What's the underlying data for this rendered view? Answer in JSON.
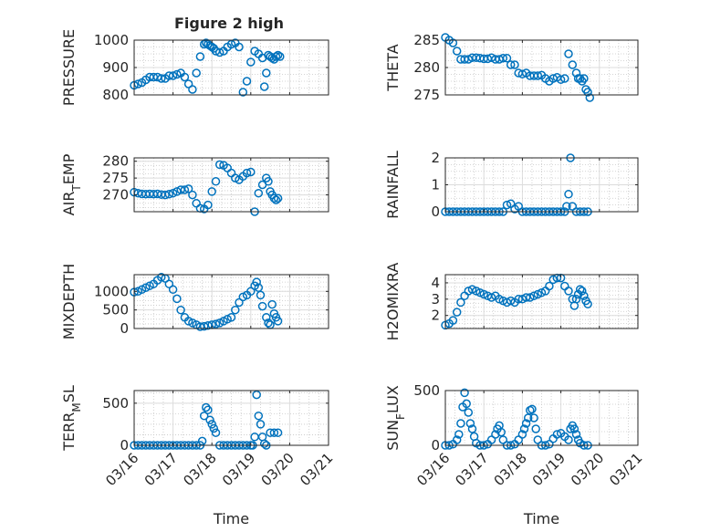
{
  "figure": {
    "title": "Figure 2 high",
    "xlabel": "Time",
    "colors": {
      "marker": "#0072BD",
      "axis": "#262626",
      "grid": "#dcdcdc",
      "background": "#ffffff"
    }
  },
  "chart_data": [
    {
      "type": "scatter",
      "ylabel": "PRESSURE",
      "ylim": [
        800,
        1000
      ],
      "yticks": [
        800,
        900,
        1000
      ],
      "ytick_labels": [
        "800",
        "900",
        "1000"
      ],
      "xlim": [
        0,
        5
      ],
      "xtick_labels": [],
      "grid": true,
      "x": [
        0,
        0.1,
        0.2,
        0.3,
        0.4,
        0.5,
        0.6,
        0.7,
        0.8,
        0.9,
        1.0,
        1.1,
        1.2,
        1.3,
        1.4,
        1.5,
        1.6,
        1.7,
        1.8,
        1.85,
        1.9,
        1.95,
        2.0,
        2.05,
        2.1,
        2.2,
        2.3,
        2.4,
        2.5,
        2.6,
        2.7,
        2.8,
        2.9,
        3.0,
        3.1,
        3.2,
        3.3,
        3.35,
        3.4,
        3.45,
        3.5,
        3.55,
        3.6,
        3.65,
        3.7,
        3.75
      ],
      "y": [
        835,
        840,
        845,
        855,
        865,
        865,
        865,
        860,
        860,
        870,
        870,
        875,
        880,
        865,
        840,
        820,
        880,
        940,
        985,
        990,
        985,
        980,
        975,
        970,
        960,
        955,
        960,
        975,
        985,
        990,
        975,
        810,
        850,
        920,
        960,
        950,
        935,
        830,
        880,
        945,
        940,
        935,
        930,
        940,
        945,
        940
      ]
    },
    {
      "type": "scatter",
      "ylabel": "THETA",
      "ylim": [
        275,
        285
      ],
      "yticks": [
        275,
        280,
        285
      ],
      "ytick_labels": [
        "275",
        "280",
        "285"
      ],
      "xlim": [
        0,
        5
      ],
      "xtick_labels": [],
      "grid": true,
      "x": [
        0,
        0.1,
        0.2,
        0.3,
        0.4,
        0.5,
        0.6,
        0.7,
        0.8,
        0.9,
        1.0,
        1.1,
        1.2,
        1.3,
        1.4,
        1.5,
        1.6,
        1.7,
        1.8,
        1.9,
        2.0,
        2.1,
        2.2,
        2.3,
        2.4,
        2.5,
        2.6,
        2.7,
        2.8,
        2.9,
        3.0,
        3.1,
        3.2,
        3.3,
        3.4,
        3.45,
        3.5,
        3.55,
        3.6,
        3.65,
        3.7,
        3.75
      ],
      "y": [
        285.5,
        285,
        284.5,
        283,
        281.5,
        281.5,
        281.5,
        281.8,
        281.8,
        281.7,
        281.6,
        281.6,
        281.8,
        281.5,
        281.5,
        281.7,
        281.7,
        280.5,
        280.5,
        279,
        278.8,
        279,
        278.5,
        278.5,
        278.5,
        278.6,
        278,
        277.5,
        278,
        278.2,
        277.8,
        278,
        282.5,
        280.5,
        279,
        278,
        278,
        277.5,
        278,
        276,
        275.5,
        274.5
      ]
    },
    {
      "type": "scatter",
      "ylabel": "AIR_TEMP",
      "ylim": [
        265,
        281
      ],
      "yticks": [
        270,
        275,
        280
      ],
      "ytick_labels": [
        "270",
        "275",
        "280"
      ],
      "xlim": [
        0,
        5
      ],
      "xtick_labels": [],
      "grid": true,
      "x": [
        0,
        0.1,
        0.2,
        0.3,
        0.4,
        0.5,
        0.6,
        0.7,
        0.8,
        0.9,
        1.0,
        1.1,
        1.2,
        1.3,
        1.4,
        1.5,
        1.6,
        1.7,
        1.8,
        1.9,
        2.0,
        2.1,
        2.2,
        2.3,
        2.4,
        2.5,
        2.6,
        2.7,
        2.8,
        2.9,
        3.0,
        3.1,
        3.2,
        3.3,
        3.4,
        3.45,
        3.5,
        3.55,
        3.6,
        3.65,
        3.7
      ],
      "y": [
        270.8,
        270.5,
        270.3,
        270.2,
        270.3,
        270.2,
        270.3,
        270.1,
        270,
        270.2,
        270.5,
        271,
        271.5,
        271.5,
        271.8,
        270,
        267.5,
        266,
        265.8,
        267,
        271,
        274,
        279,
        278.8,
        278,
        276.5,
        275,
        274.5,
        275.5,
        276.5,
        276.8,
        265,
        270.5,
        273,
        275,
        274,
        271,
        270,
        269,
        268.5,
        269
      ]
    },
    {
      "type": "scatter",
      "ylabel": "RAINFALL",
      "ylim": [
        0,
        2
      ],
      "yticks": [
        0,
        1,
        2
      ],
      "ytick_labels": [
        "0",
        "1",
        "2"
      ],
      "xlim": [
        0,
        5
      ],
      "xtick_labels": [],
      "grid": true,
      "x": [
        0,
        0.1,
        0.2,
        0.3,
        0.4,
        0.5,
        0.6,
        0.7,
        0.8,
        0.9,
        1.0,
        1.1,
        1.2,
        1.3,
        1.4,
        1.5,
        1.6,
        1.7,
        1.8,
        1.9,
        2.0,
        2.1,
        2.2,
        2.3,
        2.4,
        2.5,
        2.6,
        2.7,
        2.8,
        2.9,
        3.0,
        3.1,
        3.15,
        3.2,
        3.25,
        3.3,
        3.4,
        3.5,
        3.6,
        3.7
      ],
      "y": [
        0,
        0,
        0,
        0,
        0,
        0,
        0,
        0,
        0,
        0,
        0,
        0,
        0,
        0,
        0,
        0,
        0.25,
        0.3,
        0.1,
        0.2,
        0,
        0,
        0,
        0,
        0,
        0,
        0,
        0,
        0,
        0,
        0,
        0,
        0.2,
        0.65,
        2,
        0.2,
        0,
        0,
        0,
        0
      ]
    },
    {
      "type": "scatter",
      "ylabel": "MIXDEPTH",
      "ylim": [
        0,
        1450
      ],
      "yticks": [
        0,
        500,
        1000
      ],
      "ytick_labels": [
        "0",
        "500",
        "1000"
      ],
      "xlim": [
        0,
        5
      ],
      "xtick_labels": [],
      "grid": true,
      "x": [
        0,
        0.1,
        0.2,
        0.3,
        0.4,
        0.5,
        0.6,
        0.7,
        0.8,
        0.9,
        1.0,
        1.1,
        1.2,
        1.3,
        1.4,
        1.5,
        1.6,
        1.7,
        1.8,
        1.9,
        2.0,
        2.1,
        2.2,
        2.3,
        2.4,
        2.5,
        2.6,
        2.7,
        2.8,
        2.9,
        3.0,
        3.1,
        3.15,
        3.2,
        3.25,
        3.3,
        3.4,
        3.45,
        3.5,
        3.55,
        3.6,
        3.65,
        3.7
      ],
      "y": [
        980,
        1000,
        1050,
        1100,
        1150,
        1200,
        1300,
        1380,
        1350,
        1200,
        1050,
        800,
        500,
        300,
        200,
        150,
        100,
        50,
        60,
        80,
        100,
        120,
        150,
        200,
        250,
        300,
        500,
        700,
        850,
        900,
        1000,
        1150,
        1250,
        1100,
        900,
        600,
        300,
        150,
        100,
        650,
        400,
        300,
        200
      ]
    },
    {
      "type": "scatter",
      "ylabel": "H2OMIXRA",
      "ylim": [
        1.2,
        4.5
      ],
      "yticks": [
        2,
        3,
        4
      ],
      "ytick_labels": [
        "2",
        "3",
        "4"
      ],
      "xlim": [
        0,
        5
      ],
      "xtick_labels": [],
      "grid": true,
      "x": [
        0,
        0.1,
        0.2,
        0.3,
        0.4,
        0.5,
        0.6,
        0.7,
        0.8,
        0.9,
        1.0,
        1.1,
        1.2,
        1.3,
        1.4,
        1.5,
        1.6,
        1.7,
        1.8,
        1.9,
        2.0,
        2.1,
        2.2,
        2.3,
        2.4,
        2.5,
        2.6,
        2.7,
        2.8,
        2.9,
        3.0,
        3.1,
        3.2,
        3.3,
        3.35,
        3.4,
        3.45,
        3.5,
        3.55,
        3.6,
        3.65,
        3.7
      ],
      "y": [
        1.4,
        1.5,
        1.7,
        2.2,
        2.8,
        3.2,
        3.5,
        3.6,
        3.5,
        3.4,
        3.3,
        3.2,
        3.1,
        3.2,
        3.0,
        2.9,
        2.8,
        2.9,
        2.8,
        3.0,
        3.0,
        3.1,
        3.1,
        3.2,
        3.3,
        3.4,
        3.5,
        3.8,
        4.2,
        4.3,
        4.3,
        3.8,
        3.5,
        3.0,
        2.6,
        3.0,
        3.3,
        3.6,
        3.5,
        3.2,
        2.9,
        2.7
      ]
    },
    {
      "type": "scatter",
      "ylabel": "TERR_MSL",
      "ylim": [
        0,
        650
      ],
      "yticks": [
        0,
        500
      ],
      "ytick_labels": [
        "0",
        "500"
      ],
      "xlim": [
        0,
        5
      ],
      "xtick_labels": [
        "03/16",
        "03/17",
        "03/18",
        "03/19",
        "03/20",
        "03/21"
      ],
      "xlabel": "Time",
      "grid": true,
      "x": [
        0,
        0.1,
        0.2,
        0.3,
        0.4,
        0.5,
        0.6,
        0.7,
        0.8,
        0.9,
        1.0,
        1.1,
        1.2,
        1.3,
        1.4,
        1.5,
        1.6,
        1.7,
        1.75,
        1.8,
        1.85,
        1.9,
        1.95,
        2.0,
        2.05,
        2.1,
        2.2,
        2.3,
        2.4,
        2.5,
        2.6,
        2.7,
        2.8,
        2.9,
        3.0,
        3.05,
        3.1,
        3.15,
        3.2,
        3.25,
        3.3,
        3.35,
        3.4,
        3.5,
        3.6,
        3.7
      ],
      "y": [
        0,
        0,
        0,
        0,
        0,
        0,
        0,
        0,
        0,
        0,
        0,
        0,
        0,
        0,
        0,
        0,
        0,
        0,
        50,
        350,
        450,
        420,
        300,
        250,
        200,
        150,
        0,
        0,
        0,
        0,
        0,
        0,
        0,
        0,
        0,
        0,
        100,
        600,
        350,
        250,
        100,
        20,
        0,
        150,
        150,
        150
      ]
    },
    {
      "type": "scatter",
      "ylabel": "SUN_FLUX",
      "ylim": [
        0,
        500
      ],
      "yticks": [
        0,
        500
      ],
      "ytick_labels": [
        "0",
        "500"
      ],
      "xlim": [
        0,
        5
      ],
      "xtick_labels": [
        "03/16",
        "03/17",
        "03/18",
        "03/19",
        "03/20",
        "03/21"
      ],
      "xlabel": "Time",
      "grid": true,
      "x": [
        0,
        0.1,
        0.2,
        0.3,
        0.35,
        0.4,
        0.45,
        0.5,
        0.55,
        0.6,
        0.65,
        0.7,
        0.75,
        0.8,
        0.9,
        1.0,
        1.1,
        1.2,
        1.3,
        1.35,
        1.4,
        1.45,
        1.5,
        1.6,
        1.7,
        1.8,
        1.9,
        2.0,
        2.05,
        2.1,
        2.15,
        2.2,
        2.25,
        2.3,
        2.35,
        2.4,
        2.5,
        2.6,
        2.7,
        2.8,
        2.9,
        3.0,
        3.1,
        3.2,
        3.25,
        3.3,
        3.35,
        3.4,
        3.45,
        3.5,
        3.6,
        3.7
      ],
      "y": [
        0,
        0,
        10,
        50,
        100,
        200,
        350,
        480,
        380,
        300,
        200,
        150,
        80,
        20,
        0,
        0,
        10,
        50,
        100,
        150,
        180,
        120,
        50,
        0,
        0,
        10,
        50,
        100,
        150,
        200,
        250,
        320,
        330,
        250,
        150,
        50,
        0,
        0,
        10,
        60,
        100,
        110,
        80,
        50,
        150,
        180,
        150,
        100,
        50,
        20,
        0,
        0
      ]
    }
  ]
}
